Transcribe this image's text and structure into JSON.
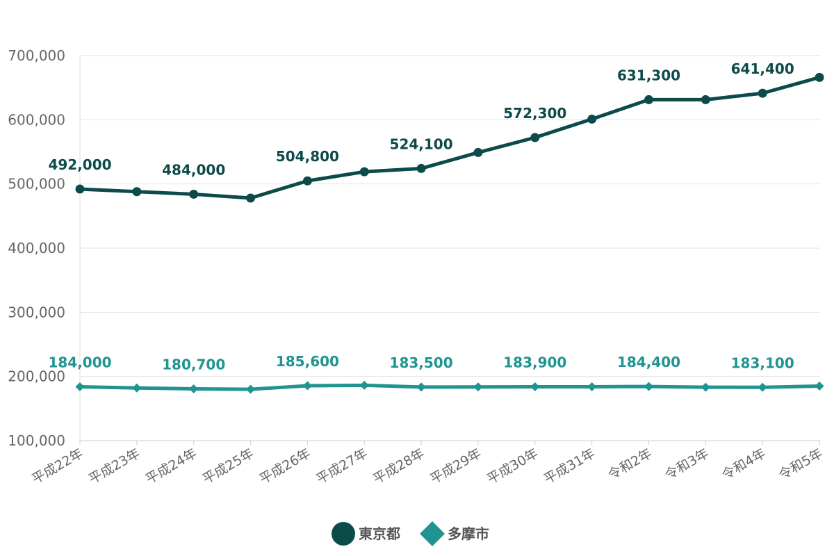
{
  "chart_data": {
    "type": "line",
    "categories": [
      "平成22年",
      "平成23年",
      "平成24年",
      "平成25年",
      "平成26年",
      "平成27年",
      "平成28年",
      "平成29年",
      "平成30年",
      "平成31年",
      "令和2年",
      "令和3年",
      "令和4年",
      "令和5年"
    ],
    "ylim": [
      100000,
      700000
    ],
    "yticks": [
      100000,
      200000,
      300000,
      400000,
      500000,
      600000,
      700000
    ],
    "ytick_labels": [
      "100,000",
      "200,000",
      "300,000",
      "400,000",
      "500,000",
      "600,000",
      "700,000"
    ],
    "grid": true,
    "legend_position": "bottom-center",
    "series": [
      {
        "name": "東京都",
        "color": "#0d4a4a",
        "marker": "circle",
        "values": [
          492000,
          488000,
          484000,
          478000,
          504800,
          519000,
          524100,
          549000,
          572300,
          601000,
          631300,
          631300,
          641400,
          666000
        ],
        "labels": [
          {
            "index": 0,
            "text": "492,000"
          },
          {
            "index": 2,
            "text": "484,000"
          },
          {
            "index": 4,
            "text": "504,800"
          },
          {
            "index": 6,
            "text": "524,100"
          },
          {
            "index": 8,
            "text": "572,300"
          },
          {
            "index": 10,
            "text": "631,300"
          },
          {
            "index": 12,
            "text": "641,400"
          }
        ]
      },
      {
        "name": "多摩市",
        "color": "#1f9490",
        "marker": "diamond",
        "values": [
          184000,
          182000,
          180700,
          180000,
          185600,
          186200,
          183500,
          183700,
          183900,
          184000,
          184400,
          183200,
          183100,
          185000
        ],
        "labels": [
          {
            "index": 0,
            "text": "184,000"
          },
          {
            "index": 2,
            "text": "180,700"
          },
          {
            "index": 4,
            "text": "185,600"
          },
          {
            "index": 6,
            "text": "183,500"
          },
          {
            "index": 8,
            "text": "183,900"
          },
          {
            "index": 10,
            "text": "184,400"
          },
          {
            "index": 12,
            "text": "183,100"
          }
        ]
      }
    ]
  }
}
